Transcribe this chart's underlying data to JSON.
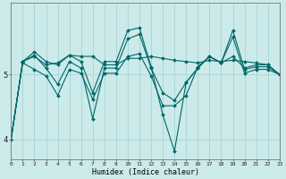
{
  "xlabel": "Humidex (Indice chaleur)",
  "ylabel": "",
  "bg_color": "#cceaea",
  "grid_color": "#aad4d4",
  "line_color": "#006868",
  "xlim": [
    0,
    23
  ],
  "ylim": [
    3.7,
    6.1
  ],
  "yticks": [
    4,
    5
  ],
  "xticks": [
    0,
    1,
    2,
    3,
    4,
    5,
    6,
    7,
    8,
    9,
    10,
    11,
    12,
    13,
    14,
    15,
    16,
    17,
    18,
    19,
    20,
    21,
    22,
    23
  ],
  "lines": [
    [
      4.0,
      5.2,
      5.28,
      5.15,
      5.18,
      5.3,
      5.28,
      5.28,
      5.15,
      5.15,
      5.25,
      5.25,
      5.28,
      5.25,
      5.22,
      5.2,
      5.18,
      5.22,
      5.2,
      5.22,
      5.2,
      5.18,
      5.15,
      5.0
    ],
    [
      4.0,
      5.2,
      5.35,
      5.2,
      5.15,
      5.3,
      5.2,
      4.72,
      5.2,
      5.2,
      5.68,
      5.72,
      5.12,
      4.38,
      3.82,
      4.88,
      5.1,
      5.28,
      5.18,
      5.28,
      5.1,
      5.15,
      5.15,
      5.0
    ],
    [
      4.0,
      5.2,
      5.3,
      5.1,
      4.85,
      5.2,
      5.1,
      4.32,
      5.1,
      5.1,
      5.55,
      5.62,
      5.1,
      4.72,
      4.6,
      4.88,
      5.1,
      5.28,
      5.18,
      5.68,
      5.08,
      5.12,
      5.12,
      5.0
    ],
    [
      4.0,
      5.18,
      5.08,
      4.98,
      4.68,
      5.08,
      5.02,
      4.62,
      5.02,
      5.02,
      5.28,
      5.32,
      4.98,
      4.52,
      4.52,
      4.68,
      5.12,
      5.28,
      5.18,
      5.58,
      5.02,
      5.08,
      5.08,
      5.0
    ]
  ]
}
